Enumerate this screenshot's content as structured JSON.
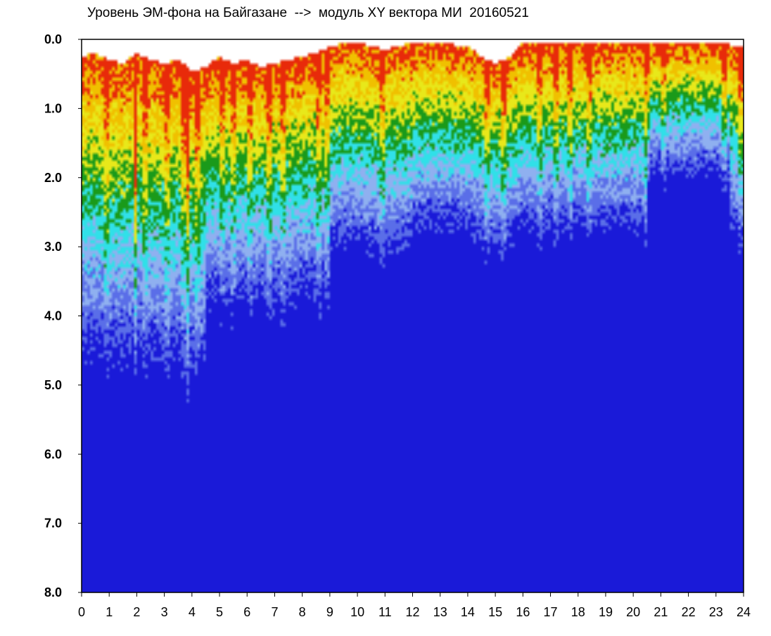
{
  "chart_data": {
    "type": "heatmap",
    "title": "Уровень ЭМ-фона на Байгазане  -->  модуль XY вектора МИ  20160521",
    "xlim": [
      0,
      24
    ],
    "ylim": [
      0.0,
      8.0
    ],
    "y_inverted": true,
    "x_ticks": [
      "0",
      "1",
      "2",
      "3",
      "4",
      "5",
      "6",
      "7",
      "8",
      "9",
      "10",
      "11",
      "12",
      "13",
      "14",
      "15",
      "16",
      "17",
      "18",
      "19",
      "20",
      "21",
      "22",
      "23",
      "24"
    ],
    "y_ticks": [
      "0.0",
      "1.0",
      "2.0",
      "3.0",
      "4.0",
      "5.0",
      "6.0",
      "7.0",
      "8.0"
    ],
    "colormap": [
      "#1a1ad8",
      "#5a6ee8",
      "#8fb0f0",
      "#30e0e8",
      "#1a9a1a",
      "#e8e81a",
      "#f0c000",
      "#e82a0a"
    ],
    "color_names": [
      "dark blue",
      "blue",
      "light blue",
      "cyan",
      "green",
      "yellow",
      "orange",
      "red"
    ],
    "upper_envelope": {
      "x": [
        0,
        0.5,
        1,
        1.5,
        2,
        2.5,
        3,
        3.5,
        4,
        4.5,
        5,
        5.5,
        6,
        6.5,
        7,
        7.5,
        8,
        8.5,
        9,
        9.5,
        10,
        11,
        12,
        13,
        14,
        14.5,
        15,
        15.5,
        16,
        17,
        18,
        19,
        20,
        21,
        22,
        23,
        24
      ],
      "y": [
        0.25,
        0.2,
        0.3,
        0.35,
        0.2,
        0.3,
        0.35,
        0.3,
        0.45,
        0.4,
        0.25,
        0.35,
        0.3,
        0.4,
        0.35,
        0.3,
        0.25,
        0.2,
        0.1,
        0.05,
        0.05,
        0.15,
        0.05,
        0.05,
        0.1,
        0.25,
        0.35,
        0.25,
        0.05,
        0.05,
        0.05,
        0.05,
        0.05,
        0.05,
        0.05,
        0.05,
        0.1
      ]
    },
    "grid": false,
    "legend": "none",
    "xlabel": "",
    "ylabel": ""
  }
}
